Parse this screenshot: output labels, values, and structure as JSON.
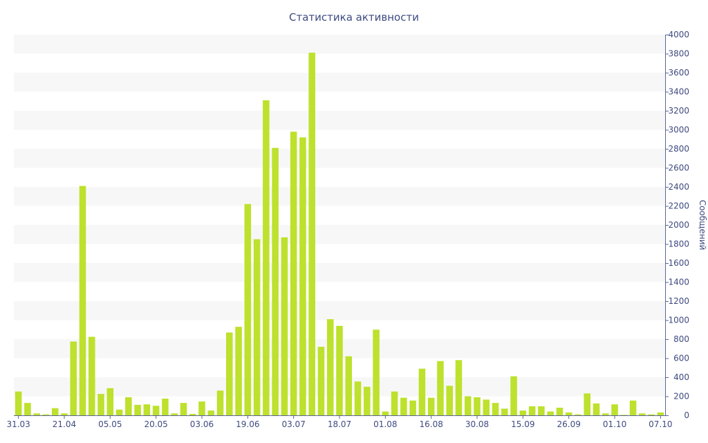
{
  "chart_data": {
    "type": "bar",
    "title": "Статистика активности",
    "xlabel": "",
    "ylabel": "Сообщений",
    "y_axis_side": "right",
    "ylim": [
      0,
      4000
    ],
    "y_ticks": [
      0,
      200,
      400,
      600,
      800,
      1000,
      1200,
      1400,
      1600,
      1800,
      2000,
      2200,
      2400,
      2600,
      2800,
      3000,
      3200,
      3400,
      3600,
      3800,
      4000
    ],
    "x_tick_labels": [
      {
        "label": "31.03",
        "index": 0
      },
      {
        "label": "21.04",
        "index": 5
      },
      {
        "label": "05.05",
        "index": 10
      },
      {
        "label": "20.05",
        "index": 15
      },
      {
        "label": "03.06",
        "index": 20
      },
      {
        "label": "19.06",
        "index": 25
      },
      {
        "label": "03.07",
        "index": 30
      },
      {
        "label": "18.07",
        "index": 35
      },
      {
        "label": "01.08",
        "index": 40
      },
      {
        "label": "16.08",
        "index": 45
      },
      {
        "label": "30.08",
        "index": 50
      },
      {
        "label": "15.09",
        "index": 55
      },
      {
        "label": "26.09",
        "index": 60
      },
      {
        "label": "01.10",
        "index": 65
      },
      {
        "label": "07.10",
        "index": 70
      }
    ],
    "values": [
      250,
      130,
      20,
      10,
      75,
      20,
      775,
      2410,
      825,
      225,
      285,
      60,
      190,
      110,
      115,
      100,
      175,
      20,
      130,
      15,
      145,
      50,
      260,
      870,
      930,
      2220,
      1850,
      3310,
      2810,
      1870,
      2980,
      2920,
      3810,
      720,
      1010,
      940,
      620,
      355,
      300,
      900,
      40,
      250,
      185,
      155,
      490,
      185,
      570,
      310,
      580,
      200,
      190,
      165,
      130,
      70,
      410,
      50,
      95,
      95,
      40,
      80,
      30,
      10,
      230,
      125,
      20,
      115,
      5,
      155,
      20,
      10,
      30
    ],
    "grid": true,
    "legend": "none",
    "colors": {
      "bar": "#bde12d",
      "text": "#3e4a80",
      "axis": "#5a6494",
      "band": "#f7f7f7"
    }
  }
}
